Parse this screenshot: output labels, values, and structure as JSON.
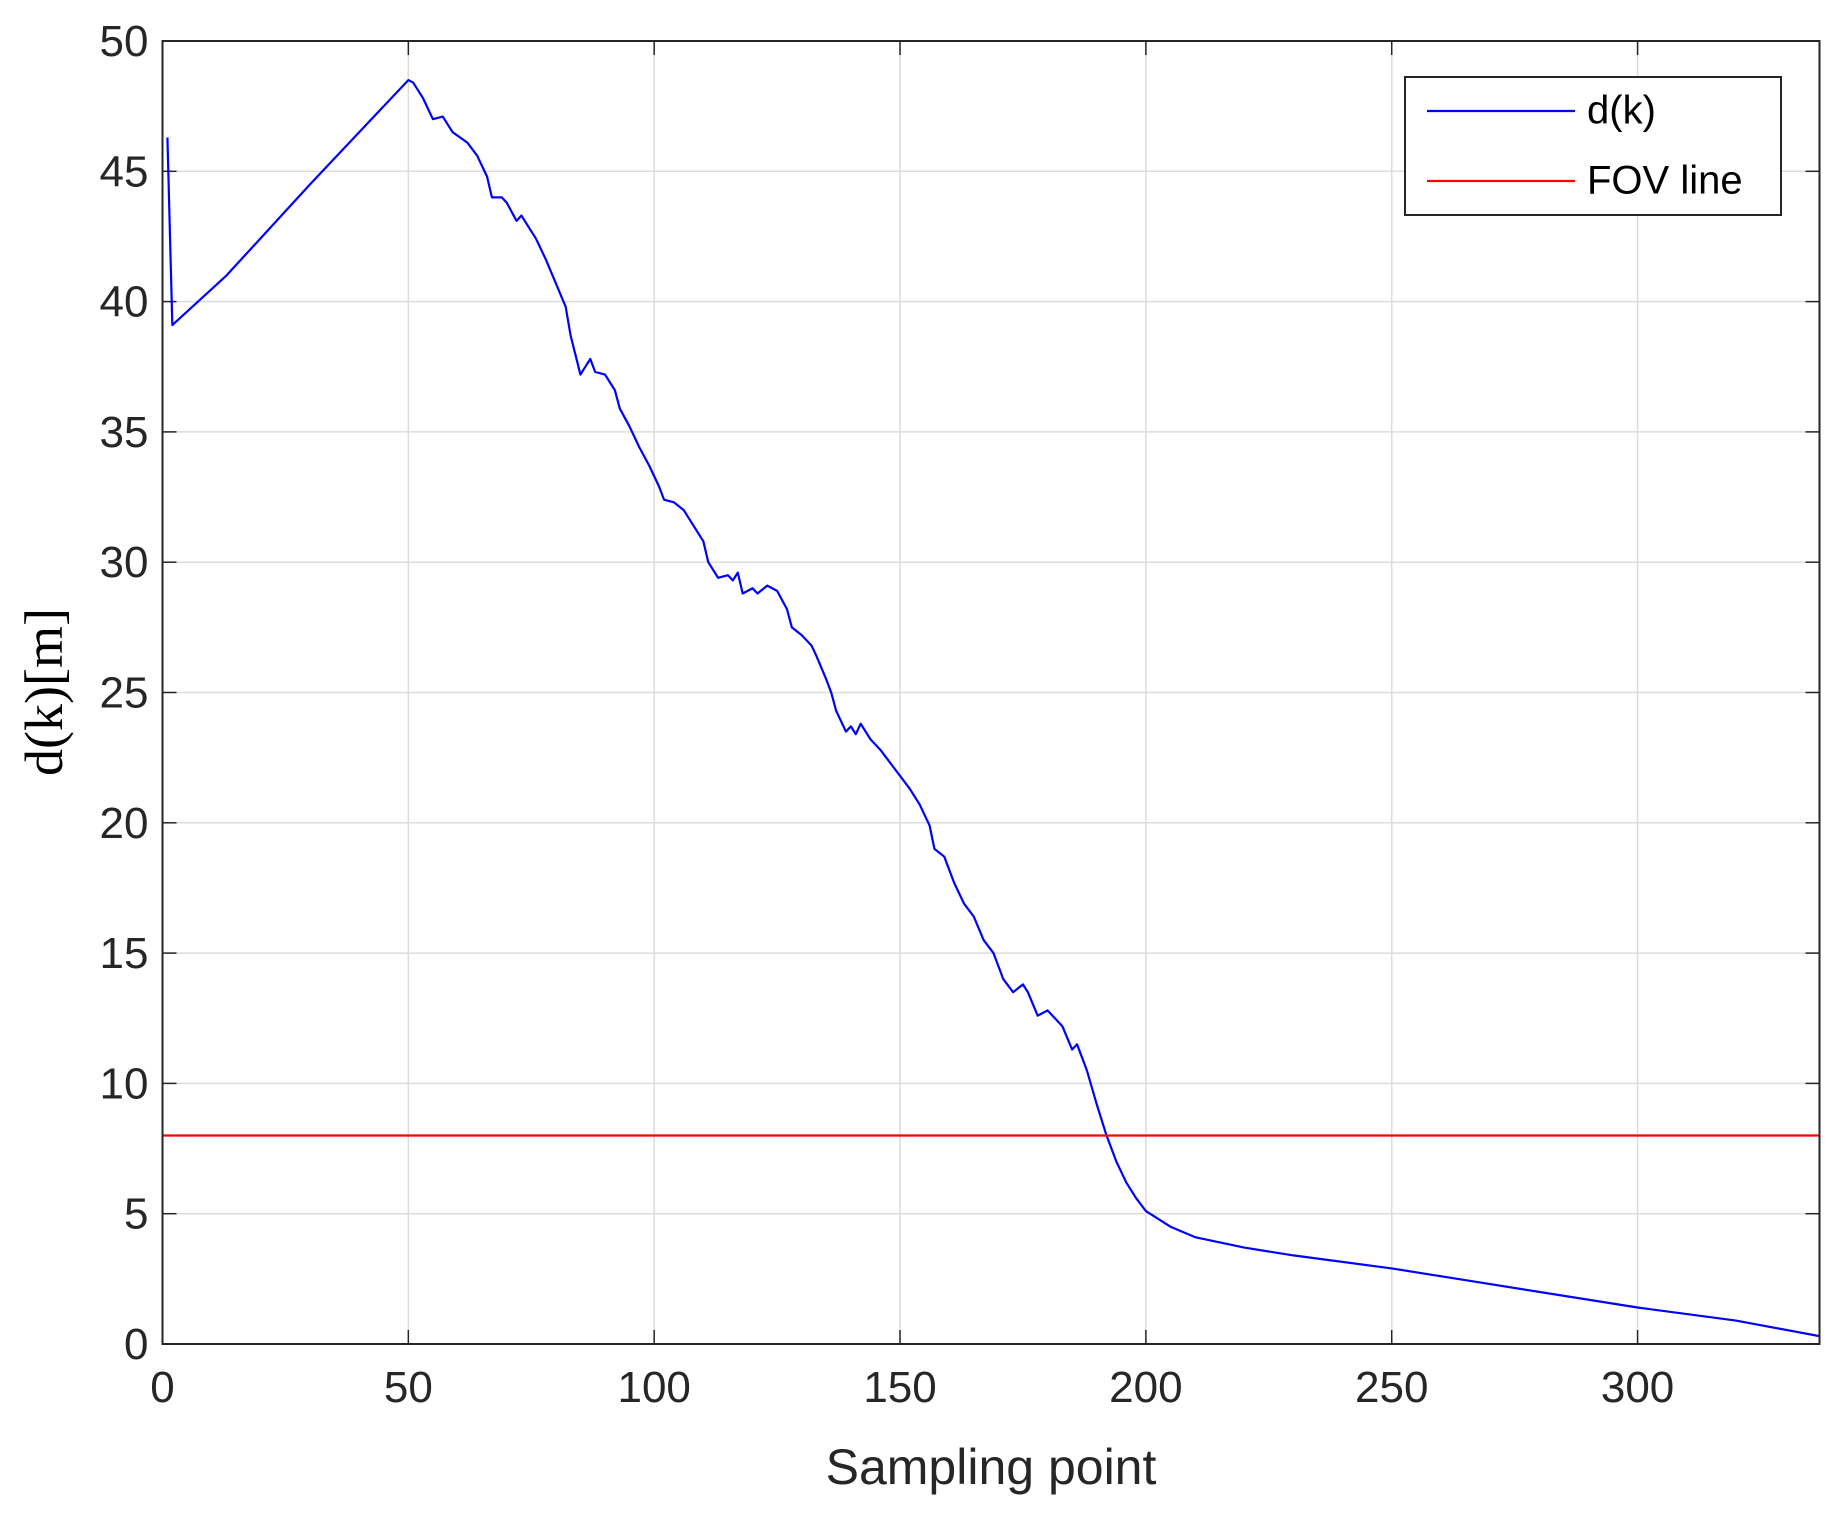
{
  "chart_data": {
    "type": "line",
    "xlabel": "Sampling point",
    "ylabel": "d(k)[m]",
    "xlim": [
      0,
      337
    ],
    "xticks": [
      0,
      50,
      100,
      150,
      200,
      250,
      300
    ],
    "ylim": [
      0,
      50
    ],
    "yticks": [
      0,
      5,
      10,
      15,
      20,
      25,
      30,
      35,
      40,
      45,
      50
    ],
    "grid": true,
    "legend": "upper right",
    "series": [
      {
        "name": "d(k)",
        "color": "#0000ff",
        "x": [
          1,
          2,
          13,
          30,
          50,
          51,
          53,
          55,
          57,
          59,
          62,
          64,
          66,
          67,
          69,
          70,
          72,
          73,
          76,
          78,
          80,
          82,
          83,
          85,
          87,
          88,
          90,
          92,
          93,
          95,
          97,
          99,
          101,
          102,
          104,
          106,
          108,
          110,
          111,
          113,
          115,
          116,
          117,
          118,
          120,
          121,
          123,
          125,
          127,
          128,
          130,
          132,
          133,
          135,
          136,
          137,
          139,
          140,
          141,
          142,
          144,
          146,
          148,
          150,
          152,
          154,
          156,
          157,
          159,
          161,
          163,
          165,
          167,
          169,
          171,
          173,
          175,
          176,
          178,
          180,
          183,
          185,
          186,
          188,
          190,
          192,
          194,
          196,
          198,
          200,
          205,
          210,
          220,
          230,
          250,
          270,
          300,
          320,
          337
        ],
        "values": [
          46.3,
          39.1,
          41,
          44.5,
          48.5,
          48.4,
          47.8,
          47.0,
          47.1,
          46.5,
          46.1,
          45.6,
          44.8,
          44.0,
          44.0,
          43.8,
          43.1,
          43.3,
          42.4,
          41.6,
          40.7,
          39.8,
          38.7,
          37.2,
          37.8,
          37.3,
          37.2,
          36.6,
          35.9,
          35.2,
          34.4,
          33.7,
          32.9,
          32.4,
          32.3,
          32.0,
          31.4,
          30.8,
          30.0,
          29.4,
          29.5,
          29.3,
          29.6,
          28.8,
          29.0,
          28.8,
          29.1,
          28.9,
          28.2,
          27.5,
          27.2,
          26.8,
          26.4,
          25.5,
          25.0,
          24.3,
          23.5,
          23.7,
          23.4,
          23.8,
          23.2,
          22.8,
          22.3,
          21.8,
          21.3,
          20.7,
          19.9,
          19.0,
          18.7,
          17.7,
          16.9,
          16.4,
          15.5,
          15.0,
          14.0,
          13.5,
          13.8,
          13.5,
          12.6,
          12.8,
          12.2,
          11.3,
          11.5,
          10.5,
          9.2,
          8.0,
          7.0,
          6.2,
          5.6,
          5.1,
          4.5,
          4.1,
          3.7,
          3.4,
          2.9,
          2.3,
          1.4,
          0.9,
          0.3
        ]
      },
      {
        "name": "FOV line",
        "color": "#ff0000",
        "x": [
          0,
          337
        ],
        "values": [
          8,
          8
        ]
      }
    ]
  }
}
